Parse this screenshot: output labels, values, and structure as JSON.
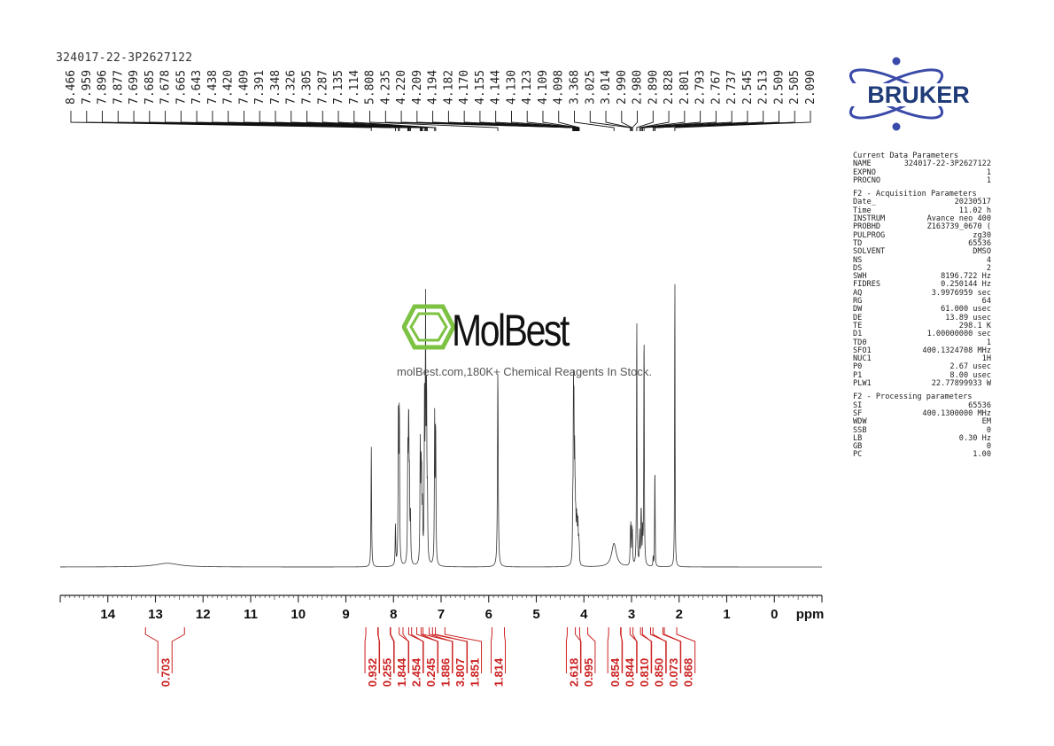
{
  "sample": {
    "name": "324017-22-3P2627122"
  },
  "logos": {
    "bruker": {
      "text": "BRUKER",
      "color": "#1f3c78",
      "accent": "#3a4aa8"
    },
    "watermark": {
      "brand": "MolBest",
      "tagline": "molBest.com,180K+ Chemical Reagents In Stock.",
      "icon": "benzene-ring-icon",
      "icon_color": "#7dc242"
    }
  },
  "params": {
    "current": {
      "heading": "Current Data Parameters",
      "rows": [
        [
          "NAME",
          "324017-22-3P2627122"
        ],
        [
          "EXPNO",
          "1"
        ],
        [
          "PROCNO",
          "1"
        ]
      ]
    },
    "acquisition": {
      "heading": "F2 - Acquisition Parameters",
      "rows": [
        [
          "Date_",
          "20230517"
        ],
        [
          "Time",
          "11.02 h"
        ],
        [
          "INSTRUM",
          "Avance neo 400"
        ],
        [
          "PROBHD",
          "Z163739_0670 ("
        ],
        [
          "PULPROG",
          "zg30"
        ],
        [
          "TD",
          "65536"
        ],
        [
          "SOLVENT",
          "DMSO"
        ],
        [
          "NS",
          "4"
        ],
        [
          "DS",
          "2"
        ],
        [
          "SWH",
          "8196.722 Hz"
        ],
        [
          "FIDRES",
          "0.250144 Hz"
        ],
        [
          "AQ",
          "3.9976959 sec"
        ],
        [
          "RG",
          "64"
        ],
        [
          "DW",
          "61.000 usec"
        ],
        [
          "DE",
          "13.89 usec"
        ],
        [
          "TE",
          "298.1 K"
        ],
        [
          "D1",
          "1.00000000 sec"
        ],
        [
          "TD0",
          "1"
        ],
        [
          "SFO1",
          "400.1324708 MHz"
        ],
        [
          "NUC1",
          "1H"
        ],
        [
          "P0",
          "2.67 usec"
        ],
        [
          "P1",
          "8.00 usec"
        ],
        [
          "PLW1",
          "22.77899933 W"
        ]
      ]
    },
    "processing": {
      "heading": "F2 - Processing parameters",
      "rows": [
        [
          "SI",
          "65536"
        ],
        [
          "SF",
          "400.1300000 MHz"
        ],
        [
          "WDW",
          "EM"
        ],
        [
          "SSB",
          "0"
        ],
        [
          "LB",
          "0.30 Hz"
        ],
        [
          "GB",
          "0"
        ],
        [
          "PC",
          "1.00"
        ]
      ]
    }
  },
  "chart_data": {
    "type": "line",
    "title": "",
    "xlabel": "ppm",
    "x_reversed": true,
    "xlim": [
      15.0,
      -1.0
    ],
    "x_ticks": [
      14,
      13,
      12,
      11,
      10,
      9,
      8,
      7,
      6,
      5,
      4,
      3,
      2,
      1,
      0
    ],
    "grid": false,
    "line_color": "#333333",
    "peak_label_color": "#222222",
    "integral_color": "#cc2222",
    "peak_labels": [
      "8.466",
      "7.959",
      "7.896",
      "7.877",
      "7.699",
      "7.685",
      "7.678",
      "7.665",
      "7.643",
      "7.438",
      "7.420",
      "7.409",
      "7.391",
      "7.348",
      "7.326",
      "7.305",
      "7.287",
      "7.135",
      "7.114",
      "5.808",
      "4.235",
      "4.220",
      "4.209",
      "4.194",
      "4.182",
      "4.170",
      "4.155",
      "4.144",
      "4.130",
      "4.123",
      "4.109",
      "4.098",
      "3.368",
      "3.025",
      "3.014",
      "2.990",
      "2.980",
      "2.890",
      "2.828",
      "2.801",
      "2.793",
      "2.767",
      "2.737",
      "2.545",
      "2.513",
      "2.509",
      "2.505",
      "2.090"
    ],
    "peaks": [
      {
        "x": 12.75,
        "h": 0.012,
        "w": 0.3
      },
      {
        "x": 8.466,
        "h": 0.39,
        "w": 0.007
      },
      {
        "x": 7.959,
        "h": 0.13,
        "w": 0.007
      },
      {
        "x": 7.896,
        "h": 0.49,
        "w": 0.007
      },
      {
        "x": 7.877,
        "h": 0.49,
        "w": 0.007
      },
      {
        "x": 7.699,
        "h": 0.32,
        "w": 0.007
      },
      {
        "x": 7.685,
        "h": 0.26,
        "w": 0.007
      },
      {
        "x": 7.678,
        "h": 0.27,
        "w": 0.007
      },
      {
        "x": 7.665,
        "h": 0.22,
        "w": 0.007
      },
      {
        "x": 7.643,
        "h": 0.15,
        "w": 0.007
      },
      {
        "x": 7.438,
        "h": 0.37,
        "w": 0.007
      },
      {
        "x": 7.42,
        "h": 0.24,
        "w": 0.007
      },
      {
        "x": 7.409,
        "h": 0.21,
        "w": 0.007
      },
      {
        "x": 7.391,
        "h": 0.16,
        "w": 0.007
      },
      {
        "x": 7.348,
        "h": 0.5,
        "w": 0.007
      },
      {
        "x": 7.326,
        "h": 0.78,
        "w": 0.007
      },
      {
        "x": 7.305,
        "h": 0.52,
        "w": 0.007
      },
      {
        "x": 7.287,
        "h": 0.18,
        "w": 0.007
      },
      {
        "x": 7.135,
        "h": 0.46,
        "w": 0.007
      },
      {
        "x": 7.114,
        "h": 0.44,
        "w": 0.007
      },
      {
        "x": 5.808,
        "h": 0.63,
        "w": 0.009
      },
      {
        "x": 4.235,
        "h": 0.15,
        "w": 0.006
      },
      {
        "x": 4.22,
        "h": 0.5,
        "w": 0.006
      },
      {
        "x": 4.209,
        "h": 0.4,
        "w": 0.006
      },
      {
        "x": 4.194,
        "h": 0.3,
        "w": 0.006
      },
      {
        "x": 4.182,
        "h": 0.16,
        "w": 0.006
      },
      {
        "x": 4.17,
        "h": 0.11,
        "w": 0.006
      },
      {
        "x": 4.155,
        "h": 0.12,
        "w": 0.006
      },
      {
        "x": 4.144,
        "h": 0.1,
        "w": 0.006
      },
      {
        "x": 4.13,
        "h": 0.09,
        "w": 0.006
      },
      {
        "x": 4.123,
        "h": 0.08,
        "w": 0.006
      },
      {
        "x": 4.109,
        "h": 0.07,
        "w": 0.006
      },
      {
        "x": 4.098,
        "h": 0.05,
        "w": 0.006
      },
      {
        "x": 3.368,
        "h": 0.075,
        "w": 0.06
      },
      {
        "x": 3.025,
        "h": 0.1,
        "w": 0.006
      },
      {
        "x": 3.014,
        "h": 0.11,
        "w": 0.006
      },
      {
        "x": 2.99,
        "h": 0.1,
        "w": 0.006
      },
      {
        "x": 2.98,
        "h": 0.08,
        "w": 0.006
      },
      {
        "x": 2.89,
        "h": 0.83,
        "w": 0.006
      },
      {
        "x": 2.828,
        "h": 0.1,
        "w": 0.006
      },
      {
        "x": 2.801,
        "h": 0.12,
        "w": 0.006
      },
      {
        "x": 2.793,
        "h": 0.12,
        "w": 0.006
      },
      {
        "x": 2.767,
        "h": 0.1,
        "w": 0.006
      },
      {
        "x": 2.737,
        "h": 0.79,
        "w": 0.006
      },
      {
        "x": 2.545,
        "h": 0.03,
        "w": 0.006
      },
      {
        "x": 2.513,
        "h": 0.12,
        "w": 0.004
      },
      {
        "x": 2.509,
        "h": 0.2,
        "w": 0.004
      },
      {
        "x": 2.505,
        "h": 0.12,
        "w": 0.004
      },
      {
        "x": 2.09,
        "h": 1.0,
        "w": 0.005
      }
    ],
    "integrals": [
      {
        "x": 12.8,
        "value": "0.703"
      },
      {
        "x": 8.45,
        "value": "0.932"
      },
      {
        "x": 8.2,
        "value": "0.255"
      },
      {
        "x": 7.93,
        "value": "1.844"
      },
      {
        "x": 7.75,
        "value": "2.454"
      },
      {
        "x": 7.55,
        "value": "0.245"
      },
      {
        "x": 7.38,
        "value": "1.886"
      },
      {
        "x": 7.25,
        "value": "3.807"
      },
      {
        "x": 7.05,
        "value": "1.851"
      },
      {
        "x": 5.8,
        "value": "1.814"
      },
      {
        "x": 4.22,
        "value": "2.618"
      },
      {
        "x": 4.05,
        "value": "0.995"
      },
      {
        "x": 3.35,
        "value": "0.854"
      },
      {
        "x": 3.1,
        "value": "0.844"
      },
      {
        "x": 2.9,
        "value": "0.810"
      },
      {
        "x": 2.68,
        "value": "0.850"
      },
      {
        "x": 2.47,
        "value": "0.073"
      },
      {
        "x": 2.18,
        "value": "0.868"
      }
    ]
  }
}
